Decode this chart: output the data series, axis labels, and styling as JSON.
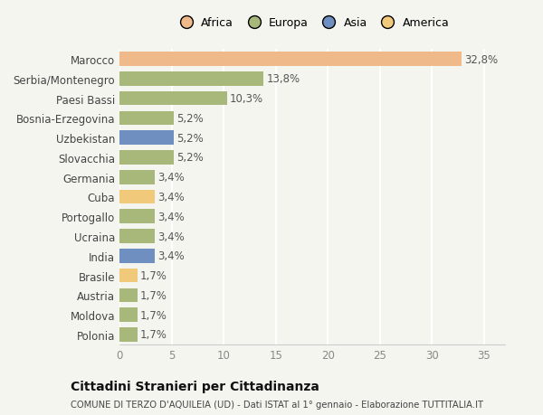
{
  "categories": [
    "Polonia",
    "Moldova",
    "Austria",
    "Brasile",
    "India",
    "Ucraina",
    "Portogallo",
    "Cuba",
    "Germania",
    "Slovacchia",
    "Uzbekistan",
    "Bosnia-Erzegovina",
    "Paesi Bassi",
    "Serbia/Montenegro",
    "Marocco"
  ],
  "values": [
    1.7,
    1.7,
    1.7,
    1.7,
    3.4,
    3.4,
    3.4,
    3.4,
    3.4,
    5.2,
    5.2,
    5.2,
    10.3,
    13.8,
    32.8
  ],
  "colors": [
    "#a8b87a",
    "#a8b87a",
    "#a8b87a",
    "#f0c97a",
    "#6e8fc0",
    "#a8b87a",
    "#a8b87a",
    "#f0c97a",
    "#a8b87a",
    "#a8b87a",
    "#6e8fc0",
    "#a8b87a",
    "#a8b87a",
    "#a8b87a",
    "#f0b98a"
  ],
  "labels": [
    "1,7%",
    "1,7%",
    "1,7%",
    "1,7%",
    "3,4%",
    "3,4%",
    "3,4%",
    "3,4%",
    "3,4%",
    "5,2%",
    "5,2%",
    "5,2%",
    "10,3%",
    "13,8%",
    "32,8%"
  ],
  "legend": [
    {
      "label": "Africa",
      "color": "#f0b98a"
    },
    {
      "label": "Europa",
      "color": "#a8b87a"
    },
    {
      "label": "Asia",
      "color": "#6e8fc0"
    },
    {
      "label": "America",
      "color": "#f0c97a"
    }
  ],
  "xlim": [
    0,
    37
  ],
  "xticks": [
    0,
    5,
    10,
    15,
    20,
    25,
    30,
    35
  ],
  "title": "Cittadini Stranieri per Cittadinanza",
  "subtitle": "COMUNE DI TERZO D'AQUILEIA (UD) - Dati ISTAT al 1° gennaio - Elaborazione TUTTITALIA.IT",
  "background_color": "#f5f5f0",
  "bar_height": 0.72,
  "label_fontsize": 8.5,
  "tick_fontsize": 8.5,
  "grid_color": "#ffffff",
  "label_color": "#555555",
  "tick_color": "#888888",
  "ytick_color": "#444444"
}
